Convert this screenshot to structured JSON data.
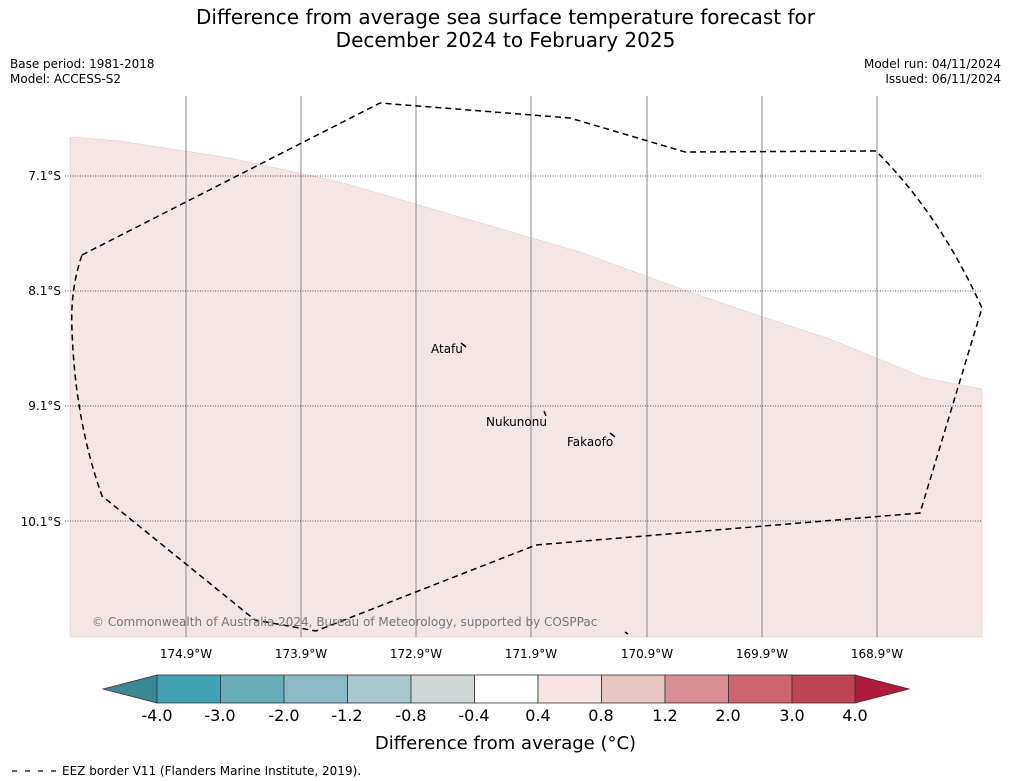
{
  "title": {
    "line1": "Difference from average sea surface temperature forecast for",
    "line2": "December 2024 to February 2025"
  },
  "meta": {
    "base_period": "Base period: 1981-2018",
    "model": "Model: ACCESS-S2",
    "model_run": "Model run: 04/11/2024",
    "issued": "Issued: 06/11/2024"
  },
  "map": {
    "lat_labels": [
      "7.1°S",
      "8.1°S",
      "9.1°S",
      "10.1°S"
    ],
    "lon_labels": [
      "174.9°W",
      "173.9°W",
      "172.9°W",
      "171.9°W",
      "170.9°W",
      "169.9°W",
      "168.9°W"
    ],
    "places": [
      {
        "name": "Atafu",
        "lon": -172.47,
        "lat": -8.56
      },
      {
        "name": "Nukunonu",
        "lon": -171.78,
        "lat": -9.17
      },
      {
        "name": "Fakaofo",
        "lon": -171.21,
        "lat": -9.37
      }
    ],
    "copyright": "© Commonwealth of Australia 2024, Bureau of Meteorology, supported by COSPPac",
    "anomaly_fill_color": "#f4e6e5"
  },
  "colorbar": {
    "ticks": [
      "-4.0",
      "-3.0",
      "-2.0",
      "-1.2",
      "-0.8",
      "-0.4",
      "0.4",
      "0.8",
      "1.2",
      "2.0",
      "3.0",
      "4.0"
    ],
    "colors": [
      "#42a0b4",
      "#69adbb",
      "#8cb9c3",
      "#aac8cb",
      "#d0d5d5",
      "#ffffff",
      "#f5e4e3",
      "#e9c5c2",
      "#d88e94",
      "#cd6470",
      "#be4354"
    ],
    "under_color": "#3a8895",
    "over_color": "#ae1a3a",
    "title": "Difference from average (°C)"
  },
  "legend": {
    "eez_text": "EEZ border V11 (Flanders Marine Institute, 2019)."
  }
}
